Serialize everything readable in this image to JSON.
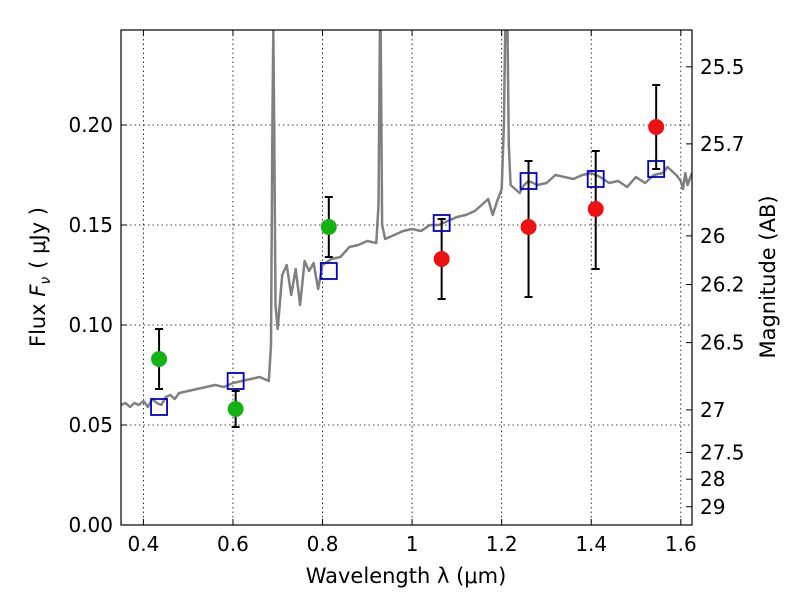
{
  "chart_data": {
    "type": "scatter",
    "xlabel": "Wavelength  λ (μm)",
    "ylabel": "Flux  F_ν  ( μJy )",
    "ylabel_parts": {
      "pre": "Flux ",
      "sym": "F",
      "sub": "ν",
      "post": "( μJy )"
    },
    "y2label": "Magnitude (AB)",
    "xlim": [
      0.35,
      1.625
    ],
    "ylim": [
      0.0,
      0.2475
    ],
    "grid": true,
    "x_ticks": [
      {
        "value": 0.4,
        "label": "0.4"
      },
      {
        "value": 0.6,
        "label": "0.6"
      },
      {
        "value": 0.8,
        "label": "0.8"
      },
      {
        "value": 1.0,
        "label": "1"
      },
      {
        "value": 1.2,
        "label": "1.2"
      },
      {
        "value": 1.4,
        "label": "1.4"
      },
      {
        "value": 1.6,
        "label": "1.6"
      }
    ],
    "y_ticks": [
      {
        "value": 0.0,
        "label": "0.00"
      },
      {
        "value": 0.05,
        "label": "0.05"
      },
      {
        "value": 0.1,
        "label": "0.10"
      },
      {
        "value": 0.15,
        "label": "0.15"
      },
      {
        "value": 0.2,
        "label": "0.20"
      }
    ],
    "y2_ticks": [
      {
        "value": 25.5,
        "label": "25.5"
      },
      {
        "value": 25.7,
        "label": "25.7"
      },
      {
        "value": 26.0,
        "label": "26"
      },
      {
        "value": 26.2,
        "label": "26.2"
      },
      {
        "value": 26.5,
        "label": "26.5"
      },
      {
        "value": 27.0,
        "label": "27"
      },
      {
        "value": 27.5,
        "label": "27.5"
      },
      {
        "value": 28.0,
        "label": "28"
      },
      {
        "value": 29.0,
        "label": "29"
      }
    ],
    "series": [
      {
        "type": "line",
        "color": "#808080",
        "x": [
          0.35,
          0.36,
          0.37,
          0.38,
          0.39,
          0.4,
          0.41,
          0.42,
          0.43,
          0.44,
          0.45,
          0.46,
          0.47,
          0.48,
          0.5,
          0.52,
          0.54,
          0.56,
          0.58,
          0.6,
          0.62,
          0.64,
          0.66,
          0.68,
          0.685,
          0.688,
          0.69,
          0.692,
          0.695,
          0.7,
          0.71,
          0.72,
          0.73,
          0.74,
          0.75,
          0.76,
          0.77,
          0.78,
          0.79,
          0.8,
          0.82,
          0.84,
          0.86,
          0.88,
          0.9,
          0.92,
          0.925,
          0.928,
          0.93,
          0.933,
          0.94,
          0.96,
          0.98,
          1.0,
          1.02,
          1.04,
          1.06,
          1.08,
          1.1,
          1.12,
          1.14,
          1.16,
          1.17,
          1.18,
          1.19,
          1.2,
          1.205,
          1.208,
          1.21,
          1.213,
          1.216,
          1.22,
          1.23,
          1.24,
          1.25,
          1.26,
          1.28,
          1.3,
          1.32,
          1.34,
          1.36,
          1.38,
          1.4,
          1.42,
          1.44,
          1.46,
          1.48,
          1.5,
          1.52,
          1.54,
          1.56,
          1.57,
          1.58,
          1.59,
          1.6,
          1.605,
          1.61,
          1.615,
          1.625
        ],
        "y": [
          0.06,
          0.061,
          0.059,
          0.061,
          0.06,
          0.062,
          0.059,
          0.063,
          0.061,
          0.06,
          0.064,
          0.065,
          0.063,
          0.066,
          0.067,
          0.068,
          0.069,
          0.07,
          0.069,
          0.071,
          0.072,
          0.073,
          0.074,
          0.072,
          0.09,
          0.2,
          0.2475,
          0.2,
          0.11,
          0.098,
          0.125,
          0.13,
          0.115,
          0.128,
          0.11,
          0.132,
          0.127,
          0.131,
          0.118,
          0.13,
          0.133,
          0.134,
          0.139,
          0.14,
          0.142,
          0.141,
          0.16,
          0.2475,
          0.2475,
          0.15,
          0.143,
          0.145,
          0.147,
          0.148,
          0.147,
          0.15,
          0.15,
          0.152,
          0.154,
          0.155,
          0.157,
          0.161,
          0.163,
          0.155,
          0.162,
          0.168,
          0.2,
          0.2475,
          0.2475,
          0.2475,
          0.19,
          0.17,
          0.168,
          0.166,
          0.17,
          0.172,
          0.17,
          0.171,
          0.175,
          0.174,
          0.173,
          0.175,
          0.176,
          0.174,
          0.171,
          0.172,
          0.169,
          0.174,
          0.171,
          0.175,
          0.176,
          0.179,
          0.177,
          0.175,
          0.172,
          0.168,
          0.176,
          0.17,
          0.176
        ]
      },
      {
        "name": "",
        "type": "scatter",
        "marker": "circle",
        "color": "#12b212",
        "x": [
          0.435,
          0.606,
          0.814
        ],
        "y": [
          0.083,
          0.058,
          0.149
        ],
        "yerr_low": [
          0.015,
          0.009,
          0.015
        ],
        "yerr_high": [
          0.015,
          0.009,
          0.015
        ]
      },
      {
        "name": "",
        "type": "scatter",
        "marker": "circle",
        "color": "#ee1111",
        "x": [
          1.066,
          1.26,
          1.41,
          1.545
        ],
        "y": [
          0.133,
          0.149,
          0.158,
          0.199
        ],
        "yerr_low": [
          0.02,
          0.035,
          0.03,
          0.021
        ],
        "yerr_high": [
          0.02,
          0.033,
          0.029,
          0.021
        ]
      },
      {
        "name": "",
        "type": "scatter",
        "marker": "open-square",
        "color": "#0000cc",
        "x": [
          0.435,
          0.606,
          0.814,
          1.066,
          1.26,
          1.41,
          1.545
        ],
        "y": [
          0.059,
          0.072,
          0.127,
          0.151,
          0.172,
          0.173,
          0.178
        ]
      }
    ]
  }
}
